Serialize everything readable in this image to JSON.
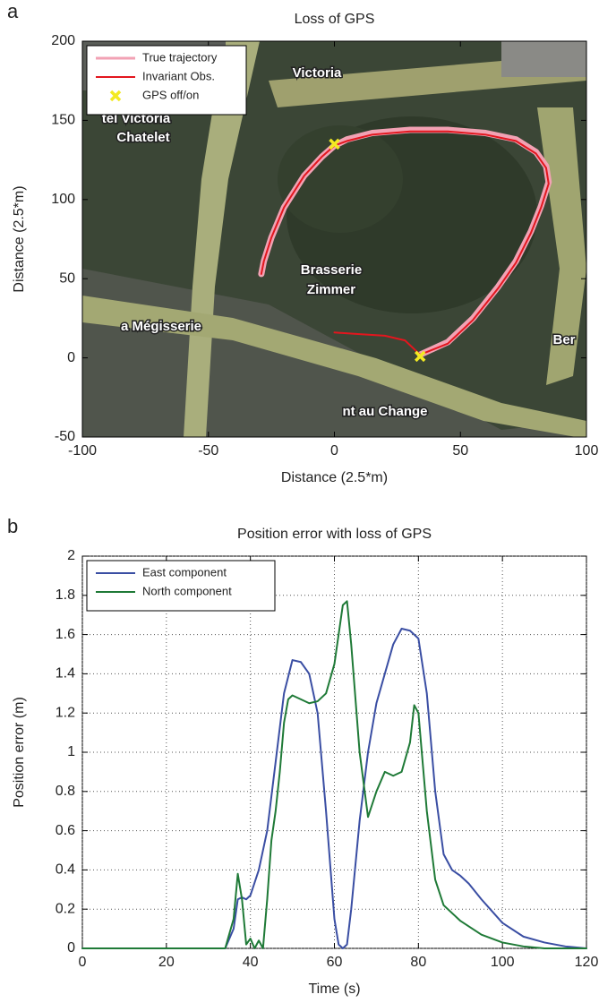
{
  "chart_data": [
    {
      "type": "line",
      "panel_label": "a",
      "title": "Loss of GPS",
      "x_label": "Distance (2.5*m)",
      "y_label": "Distance (2.5*m)",
      "xlim": [
        -100,
        100
      ],
      "xticks": [
        -100,
        -50,
        0,
        50,
        100
      ],
      "ylim": [
        -50,
        200
      ],
      "yticks": [
        -50,
        0,
        50,
        100,
        150,
        200
      ],
      "grid": false,
      "legend": "upper left",
      "map_labels": [
        "Victoria",
        "tel Victoria",
        "Chatelet",
        "Brasserie",
        "Zimmer",
        "a Mégisserie",
        "Ber",
        "nt au Change"
      ],
      "series": [
        {
          "name": "True trajectory",
          "color": "#f2a2b4",
          "width": 7,
          "x": [
            34,
            45,
            55,
            65,
            72,
            78,
            82,
            85,
            84,
            80,
            72,
            60,
            45,
            30,
            15,
            5,
            0,
            -5,
            -12,
            -20,
            -25,
            -28,
            -29
          ],
          "values": [
            2,
            10,
            25,
            45,
            61,
            80,
            96,
            111,
            121,
            130,
            138,
            142,
            144,
            144,
            142,
            138,
            134,
            127,
            115,
            95,
            76,
            61,
            53
          ]
        },
        {
          "name": "Invariant Obs.",
          "color": "#e3161e",
          "width": 2,
          "x": [
            0,
            10,
            20,
            28,
            34,
            45,
            55,
            65,
            72,
            78,
            82,
            85,
            84,
            80,
            72,
            60,
            45,
            30,
            15,
            5,
            0,
            -5,
            -12,
            -20,
            -25,
            -28,
            -29
          ],
          "values": [
            16,
            15,
            14,
            11,
            2,
            9,
            24,
            44,
            60,
            79,
            95,
            110,
            120,
            129,
            137,
            141,
            143,
            143,
            141,
            137,
            134,
            127,
            115,
            95,
            76,
            61,
            53
          ]
        },
        {
          "name": "GPS off/on",
          "color": "#f3ea22",
          "type": "scatter",
          "marker": "x",
          "x": [
            0,
            34
          ],
          "values": [
            135,
            1
          ]
        }
      ]
    },
    {
      "type": "line",
      "panel_label": "b",
      "title": "Position error with loss of GPS",
      "x_label": "Time (s)",
      "y_label": "Position error (m)",
      "xlim": [
        0,
        120
      ],
      "xticks": [
        0,
        20,
        40,
        60,
        80,
        100,
        120
      ],
      "ylim": [
        0,
        2
      ],
      "yticks": [
        0,
        0.2,
        0.4,
        0.6,
        0.8,
        1,
        1.2,
        1.4,
        1.6,
        1.8,
        2
      ],
      "grid": true,
      "legend": "upper left",
      "series": [
        {
          "name": "East component",
          "color": "#3a4ea3",
          "width": 2,
          "x": [
            0,
            34,
            36,
            37,
            38,
            39,
            40,
            42,
            44,
            46,
            48,
            50,
            52,
            54,
            56,
            58,
            60,
            61,
            62,
            63,
            64,
            66,
            68,
            70,
            72,
            74,
            76,
            78,
            80,
            82,
            84,
            86,
            88,
            90,
            92,
            95,
            100,
            105,
            110,
            115,
            120
          ],
          "values": [
            0,
            0,
            0.1,
            0.25,
            0.26,
            0.25,
            0.27,
            0.4,
            0.6,
            0.95,
            1.3,
            1.47,
            1.46,
            1.4,
            1.2,
            0.7,
            0.15,
            0.02,
            0,
            0.02,
            0.2,
            0.65,
            1.0,
            1.25,
            1.4,
            1.55,
            1.63,
            1.62,
            1.58,
            1.3,
            0.8,
            0.48,
            0.4,
            0.37,
            0.33,
            0.25,
            0.13,
            0.06,
            0.03,
            0.01,
            0
          ]
        },
        {
          "name": "North component",
          "color": "#1f7a37",
          "width": 2,
          "x": [
            0,
            34,
            36,
            37,
            38,
            39,
            40,
            41,
            42,
            43,
            44,
            45,
            46,
            47,
            48,
            49,
            50,
            52,
            54,
            56,
            58,
            60,
            62,
            63,
            64,
            66,
            68,
            70,
            72,
            74,
            76,
            78,
            79,
            80,
            82,
            84,
            86,
            90,
            95,
            100,
            105,
            110,
            120
          ],
          "values": [
            0,
            0,
            0.15,
            0.38,
            0.25,
            0.02,
            0.05,
            0,
            0.04,
            0,
            0.25,
            0.55,
            0.7,
            0.9,
            1.15,
            1.27,
            1.29,
            1.27,
            1.25,
            1.26,
            1.3,
            1.45,
            1.75,
            1.77,
            1.55,
            1.0,
            0.67,
            0.8,
            0.9,
            0.88,
            0.9,
            1.05,
            1.24,
            1.2,
            0.7,
            0.35,
            0.22,
            0.14,
            0.07,
            0.03,
            0.01,
            0,
            0
          ]
        }
      ]
    }
  ]
}
